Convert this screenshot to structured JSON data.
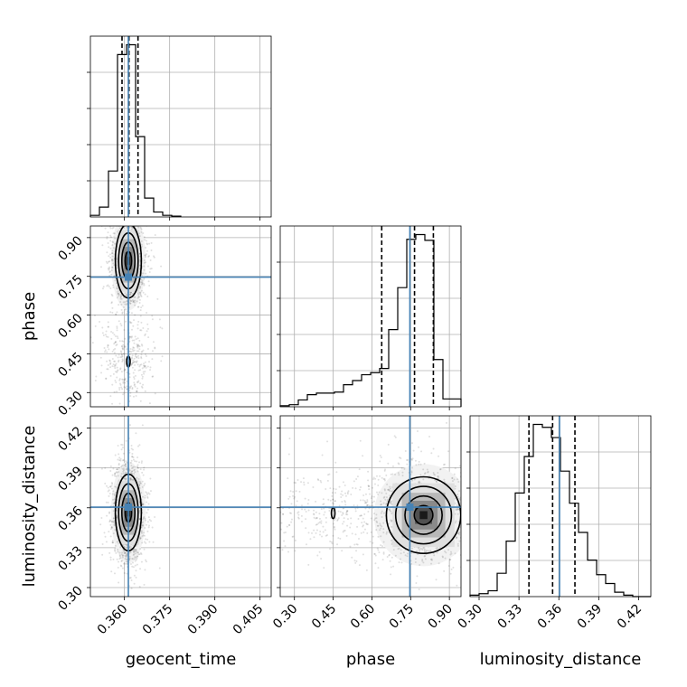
{
  "chart_data": {
    "type": "corner",
    "title": "",
    "parameters": [
      "geocent_time",
      "phase",
      "luminosity_distance"
    ],
    "axis_labels": {
      "geocent_time": "geocent_time",
      "phase": "phase",
      "luminosity_distance": "luminosity_distance"
    },
    "ranges": {
      "geocent_time": [
        0.3487,
        0.4087
      ],
      "phase": [
        0.245,
        0.945
      ],
      "luminosity_distance": [
        0.2932,
        0.4292
      ]
    },
    "ticks": {
      "geocent_time": [
        "0.360",
        "0.375",
        "0.390",
        "0.405"
      ],
      "phase": [
        "0.30",
        "0.45",
        "0.60",
        "0.75",
        "0.90"
      ],
      "luminosity_distance": [
        "0.30",
        "0.33",
        "0.36",
        "0.39",
        "0.42"
      ]
    },
    "truths": {
      "geocent_time": 0.3613,
      "phase": 0.747,
      "luminosity_distance": 0.3605
    },
    "quantiles": {
      "geocent_time": [
        0.3592,
        0.3615,
        0.3645
      ],
      "phase": [
        0.638,
        0.765,
        0.838
      ],
      "luminosity_distance": [
        0.3375,
        0.3553,
        0.3721
      ]
    },
    "histograms": {
      "geocent_time": {
        "edges": [
          0.3487,
          0.3517,
          0.3547,
          0.3577,
          0.3607,
          0.3637,
          0.3667,
          0.3697,
          0.3727,
          0.3757,
          0.3787
        ],
        "counts": [
          0.2,
          1.2,
          5.6,
          19.8,
          21.0,
          9.8,
          2.3,
          0.6,
          0.2,
          0.1
        ]
      },
      "phase": {
        "edges": [
          0.245,
          0.28,
          0.315,
          0.35,
          0.385,
          0.42,
          0.455,
          0.49,
          0.525,
          0.56,
          0.595,
          0.63,
          0.665,
          0.7,
          0.735,
          0.77,
          0.805,
          0.84,
          0.875,
          0.91,
          0.945
        ],
        "counts": [
          0.2,
          0.4,
          1.3,
          2.3,
          2.6,
          2.6,
          2.8,
          4.2,
          5.0,
          6.1,
          6.5,
          7.3,
          14.7,
          22.7,
          31.9,
          32.8,
          31.7,
          9.0,
          1.5,
          1.5
        ]
      },
      "luminosity_distance": {
        "edges": [
          0.2932,
          0.3,
          0.3068,
          0.3136,
          0.3204,
          0.3272,
          0.334,
          0.3408,
          0.3476,
          0.3544,
          0.3612,
          0.368,
          0.3748,
          0.3816,
          0.3884,
          0.3952,
          0.402,
          0.4088,
          0.4156,
          0.4224,
          0.4292
        ],
        "counts": [
          0.1,
          0.2,
          0.4,
          1.6,
          3.8,
          7.1,
          9.6,
          11.8,
          11.6,
          10.9,
          8.6,
          6.4,
          4.4,
          2.5,
          1.5,
          0.9,
          0.3,
          0.1,
          0.0,
          0.0
        ]
      }
    },
    "density_peaks": [
      {
        "x": "geocent_time",
        "y": "phase",
        "center": [
          0.3613,
          0.81
        ],
        "secondary": [
          0.3613,
          0.42
        ]
      },
      {
        "x": "geocent_time",
        "y": "luminosity_distance",
        "center": [
          0.3613,
          0.3565
        ]
      },
      {
        "x": "phase",
        "y": "luminosity_distance",
        "center": [
          0.8,
          0.3545
        ],
        "secondary": [
          0.45,
          0.356
        ]
      }
    ],
    "grid": true,
    "legend": "none"
  }
}
